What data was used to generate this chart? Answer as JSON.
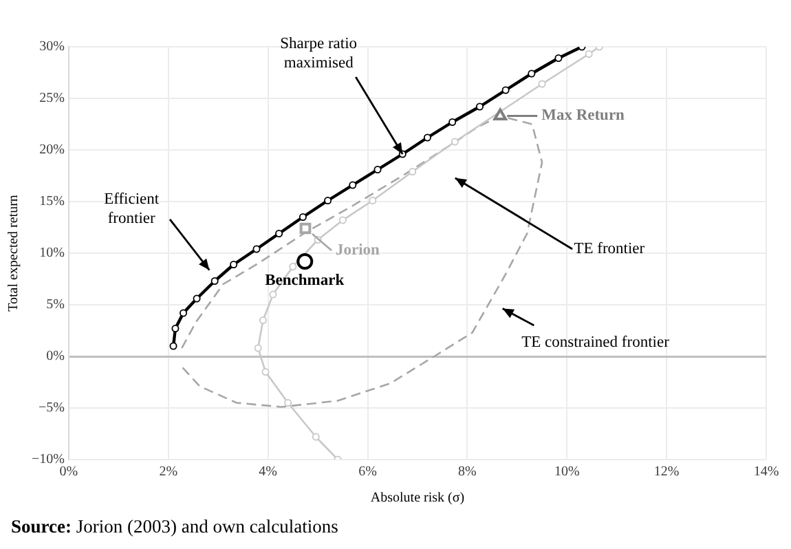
{
  "chart_data": {
    "type": "line",
    "xlabel": "Absolute risk (σ)",
    "ylabel": "Total expected return",
    "xlim": [
      0,
      14
    ],
    "xticks": [
      {
        "value": 0,
        "label": "0%"
      },
      {
        "value": 2,
        "label": "2%"
      },
      {
        "value": 4,
        "label": "4%"
      },
      {
        "value": 6,
        "label": "6%"
      },
      {
        "value": 8,
        "label": "8%"
      },
      {
        "value": 10,
        "label": "10%"
      },
      {
        "value": 12,
        "label": "12%"
      },
      {
        "value": 14,
        "label": "14%"
      }
    ],
    "ylim": [
      -10,
      30
    ],
    "yticks": [
      {
        "value": -10,
        "label": "−10%"
      },
      {
        "value": -5,
        "label": "−5%"
      },
      {
        "value": 0,
        "label": "0%"
      },
      {
        "value": 5,
        "label": "5%"
      },
      {
        "value": 10,
        "label": "10%"
      },
      {
        "value": 15,
        "label": "15%"
      },
      {
        "value": 20,
        "label": "20%"
      },
      {
        "value": 25,
        "label": "25%"
      },
      {
        "value": 30,
        "label": "30%"
      }
    ],
    "grid": true,
    "series": [
      {
        "color": "#000000",
        "marker": "circle",
        "line_style": "solid",
        "x": [
          2.1,
          2.14,
          2.3,
          2.57,
          2.93,
          3.31,
          3.77,
          4.22,
          4.7,
          5.2,
          5.7,
          6.2,
          6.7,
          7.2,
          7.7,
          8.25,
          8.77,
          9.29,
          9.83,
          10.3
        ],
        "values": [
          1.0,
          2.7,
          4.2,
          5.6,
          7.3,
          8.9,
          10.4,
          11.9,
          13.5,
          15.1,
          16.6,
          18.1,
          19.6,
          21.2,
          22.7,
          24.2,
          25.8,
          27.4,
          28.9,
          30
        ]
      },
      {
        "color": "#c8c8c8",
        "marker": "circle",
        "line_style": "solid",
        "x": [
          5.4,
          4.96,
          4.4,
          3.95,
          3.8,
          3.9,
          4.1,
          4.5,
          5.0,
          5.5,
          6.1,
          6.9,
          7.75,
          9.5,
          10.44,
          10.65
        ],
        "values": [
          -10,
          -7.8,
          -4.5,
          -1.5,
          0.8,
          3.5,
          6,
          8.7,
          11.3,
          13.2,
          15.1,
          17.9,
          20.8,
          26.4,
          29.3,
          30
        ]
      },
      {
        "color": "#a6a6a6",
        "marker": "none",
        "line_style": "dashed",
        "x": [
          2.27,
          2.55,
          3.1,
          3.8,
          4.75,
          5.7,
          6.7,
          7.7,
          8.2,
          8.66,
          9.3,
          9.5,
          9.2,
          8.75,
          8.1,
          7.37,
          6.46,
          5.4,
          4.27,
          3.37,
          2.63,
          2.27
        ],
        "values": [
          0.8,
          3.3,
          7,
          9.0,
          12.0,
          14.6,
          17.5,
          20.6,
          22.2,
          23.3,
          22.5,
          18.8,
          11.9,
          7.8,
          2.3,
          0.1,
          -2.6,
          -4.3,
          -4.9,
          -4.5,
          -2.9,
          -1
        ]
      },
      {
        "type": "scatter",
        "color": "#7f7f7f",
        "marker": "triangle",
        "x": [
          8.66
        ],
        "values": [
          23.3
        ]
      },
      {
        "type": "scatter",
        "color": "#a6a6a6",
        "marker": "square",
        "x": [
          4.75
        ],
        "values": [
          12.4
        ]
      },
      {
        "type": "scatter",
        "color": "#000000",
        "marker": "circle",
        "x": [
          4.74
        ],
        "values": [
          9.2
        ]
      }
    ],
    "annotations": [
      {
        "text": "Sharpe ratio maximised",
        "x": 6.7,
        "y": 19.6
      },
      "Efficient frontier",
      "TE frontier",
      "TE constrained frontier",
      {
        "text": "Max Return",
        "x": 8.66,
        "y": 23.3
      },
      {
        "text": "Jorion",
        "x": 4.75,
        "y": 12.4
      },
      {
        "text": "Benchmark",
        "x": 4.74,
        "y": 9.2
      },
      "Source: Jorion (2003) and own calculations"
    ]
  }
}
